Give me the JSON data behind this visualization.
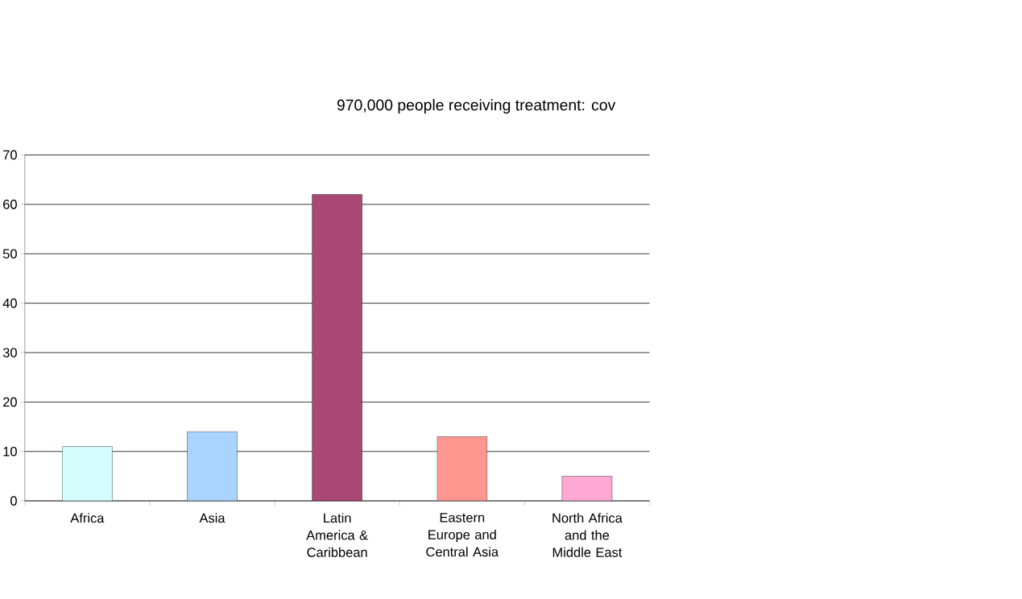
{
  "chart_data": {
    "type": "bar",
    "title": "970,000 people receiving treatment: cov",
    "categories": [
      "Africa",
      "Asia",
      "Latin America & Caribbean",
      "Eastern Europe and Central Asia",
      "North Africa and the Middle East"
    ],
    "values": [
      11,
      14,
      62,
      13,
      5
    ],
    "colors": [
      "#d5fdfd",
      "#a9d4ff",
      "#a94873",
      "#fe9690",
      "#fea9d4"
    ],
    "ylim": [
      0,
      70
    ],
    "yticks": [
      0,
      10,
      20,
      30,
      40,
      50,
      60,
      70
    ],
    "grid": "y"
  }
}
